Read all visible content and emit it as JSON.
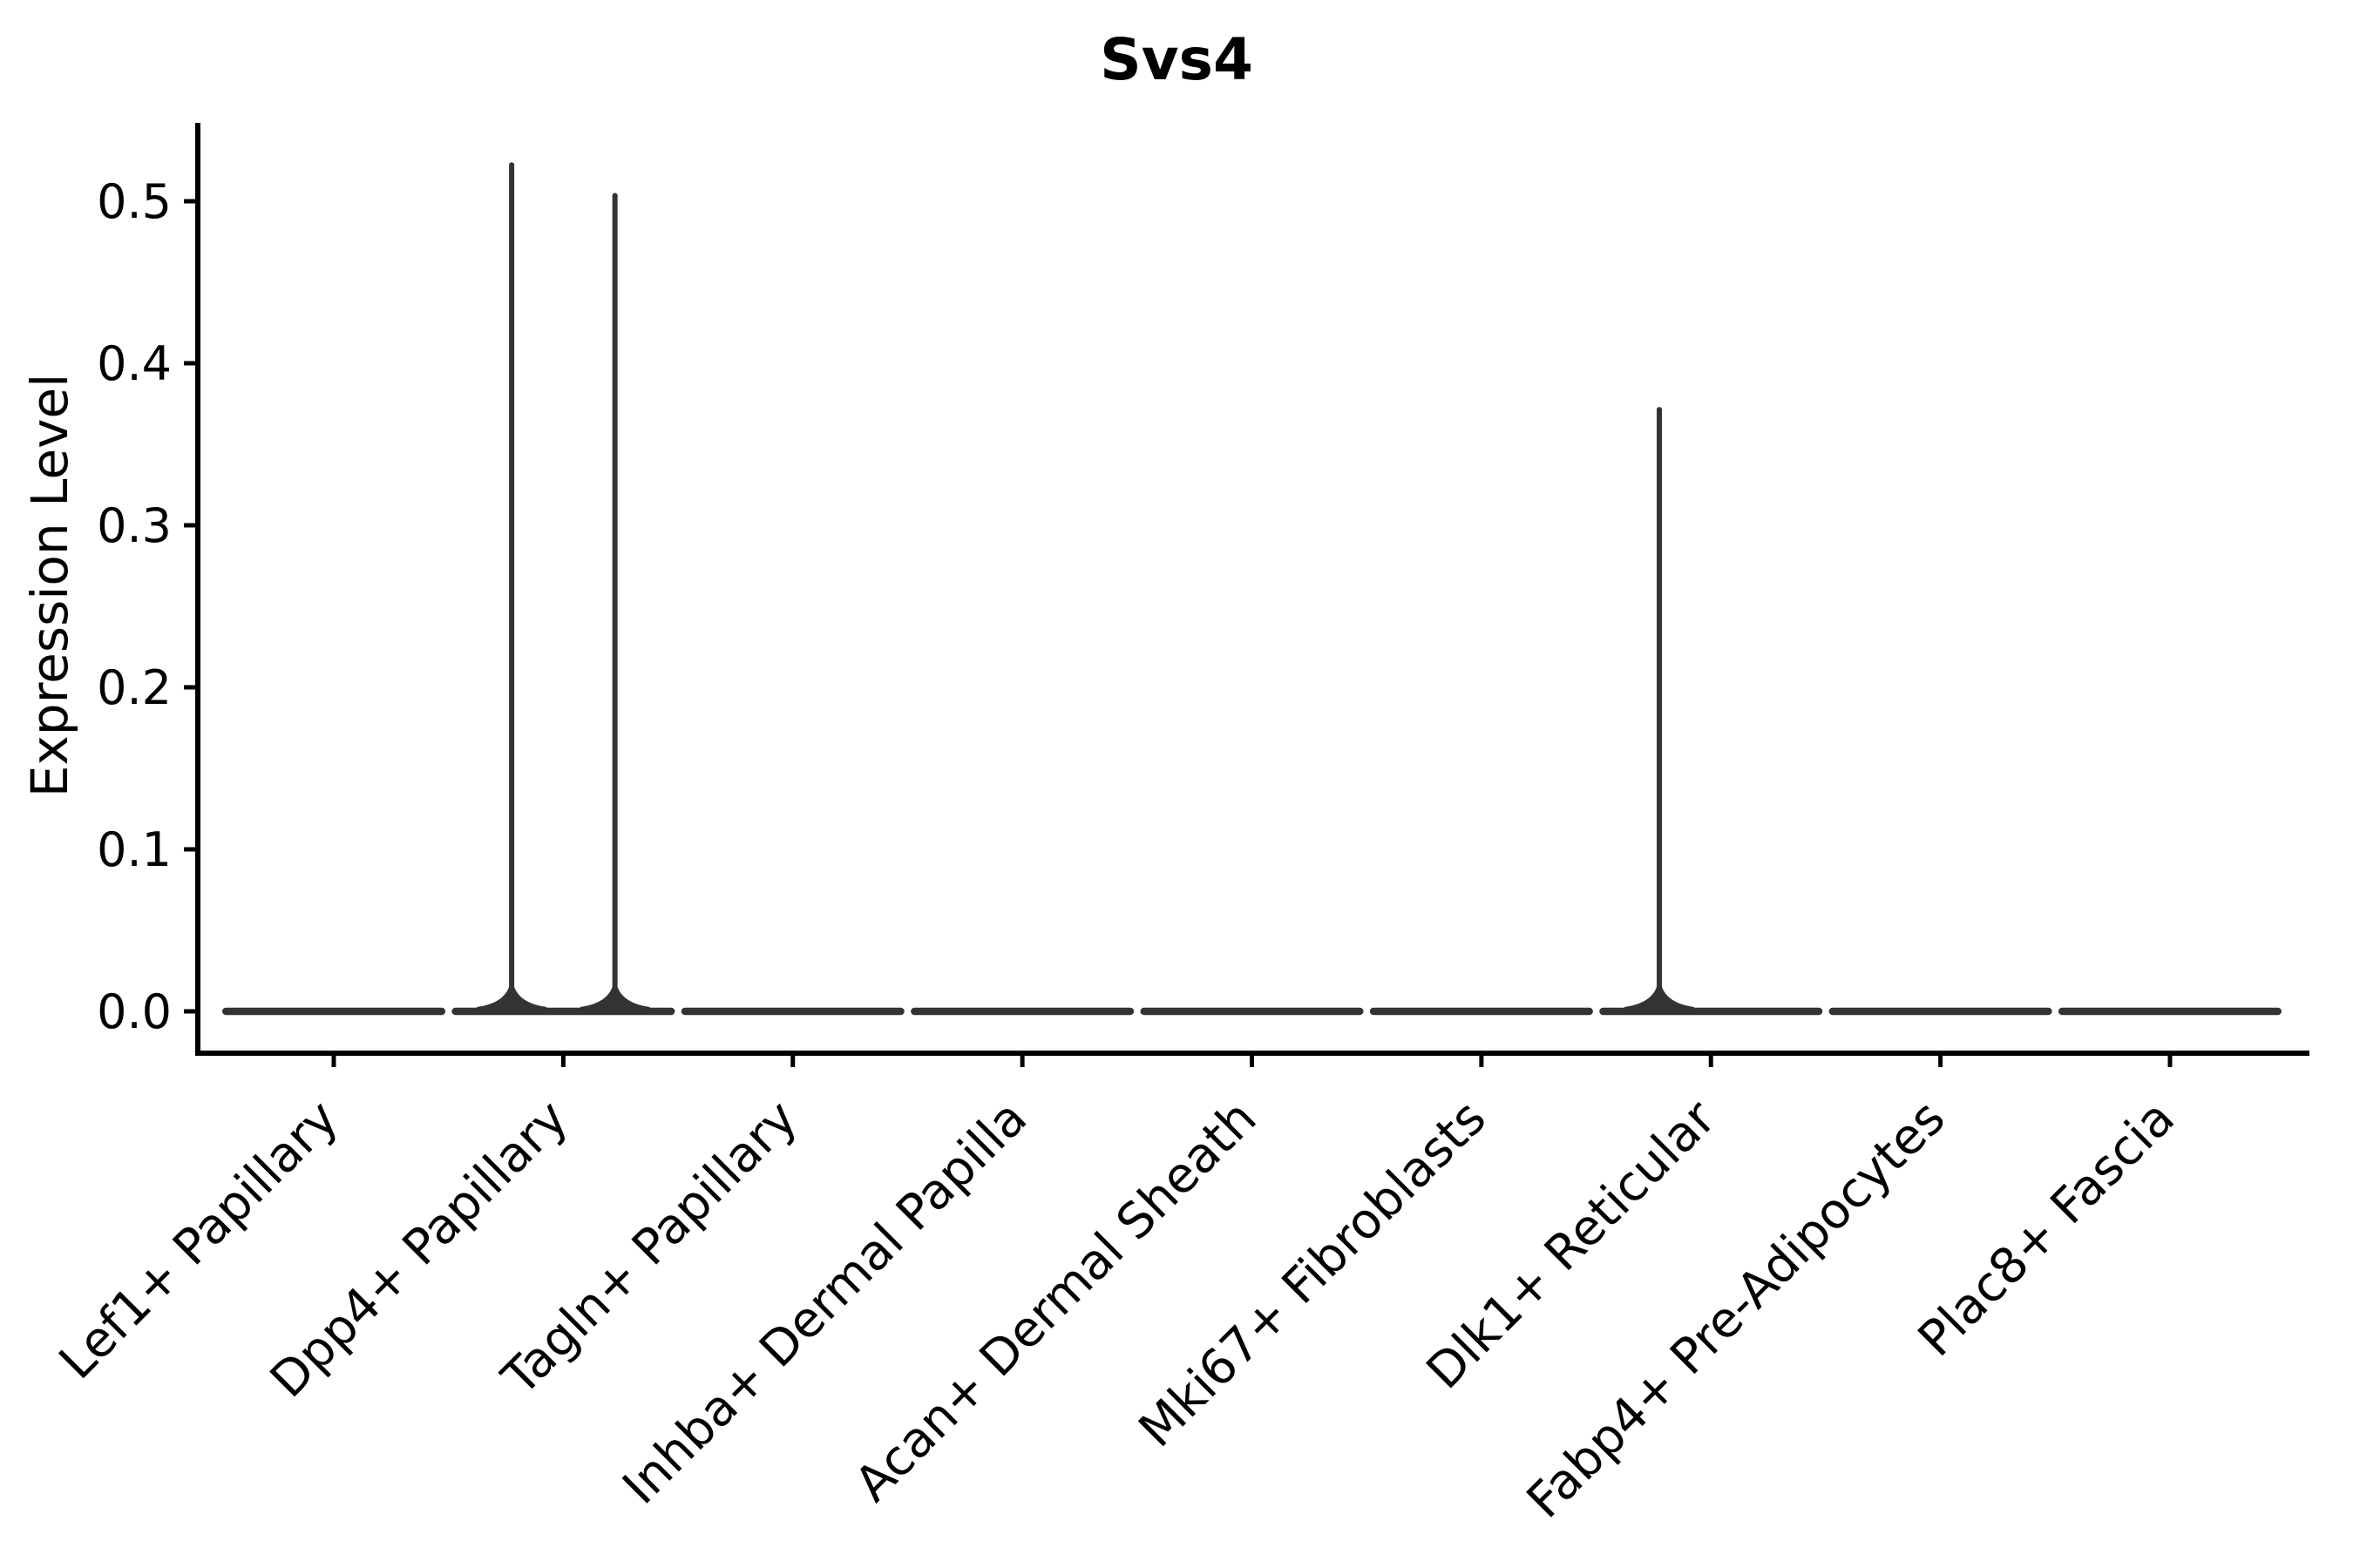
{
  "chart_data": {
    "type": "violin",
    "title": "Svs4",
    "xlabel": "",
    "ylabel": "Expression Level",
    "categories": [
      "Lef1+ Papillary",
      "Dpp4+ Papillary",
      "Tagln+ Papillary",
      "Inhba+ Dermal Papilla",
      "Acan+ Dermal Sheath",
      "Mki67+ Fibroblasts",
      "Dlk1+ Reticular",
      "Fabp4+ Pre-Adipocytes",
      "Plac8+ Fascia"
    ],
    "y_ticks": [
      0.0,
      0.1,
      0.2,
      0.3,
      0.4,
      0.5
    ],
    "y_tick_labels": [
      "0.0",
      "0.1",
      "0.2",
      "0.3",
      "0.4",
      "0.5"
    ],
    "ylim": [
      -0.026,
      0.548
    ],
    "x_tick_rotation_deg": 45,
    "grid": false,
    "legend": null,
    "violins": [
      {
        "category": "Lef1+ Papillary",
        "baseline_value": 0.0,
        "half_width": 0.47,
        "spikes": []
      },
      {
        "category": "Dpp4+ Papillary",
        "baseline_value": 0.0,
        "half_width": 0.47,
        "spikes": [
          {
            "x_offset": -0.225,
            "max_value": 0.523
          },
          {
            "x_offset": 0.225,
            "max_value": 0.504
          }
        ]
      },
      {
        "category": "Tagln+ Papillary",
        "baseline_value": 0.0,
        "half_width": 0.47,
        "spikes": []
      },
      {
        "category": "Inhba+ Dermal Papilla",
        "baseline_value": 0.0,
        "half_width": 0.47,
        "spikes": []
      },
      {
        "category": "Acan+ Dermal Sheath",
        "baseline_value": 0.0,
        "half_width": 0.47,
        "spikes": []
      },
      {
        "category": "Mki67+ Fibroblasts",
        "baseline_value": 0.0,
        "half_width": 0.47,
        "spikes": []
      },
      {
        "category": "Dlk1+ Reticular",
        "baseline_value": 0.0,
        "half_width": 0.47,
        "spikes": [
          {
            "x_offset": -0.225,
            "max_value": 0.372
          }
        ]
      },
      {
        "category": "Fabp4+ Pre-Adipocytes",
        "baseline_value": 0.0,
        "half_width": 0.47,
        "spikes": []
      },
      {
        "category": "Plac8+ Fascia",
        "baseline_value": 0.0,
        "half_width": 0.47,
        "spikes": []
      }
    ],
    "colors": {
      "violin": "#333333",
      "axis": "#000000",
      "text": "#000000",
      "background": "#ffffff"
    }
  }
}
